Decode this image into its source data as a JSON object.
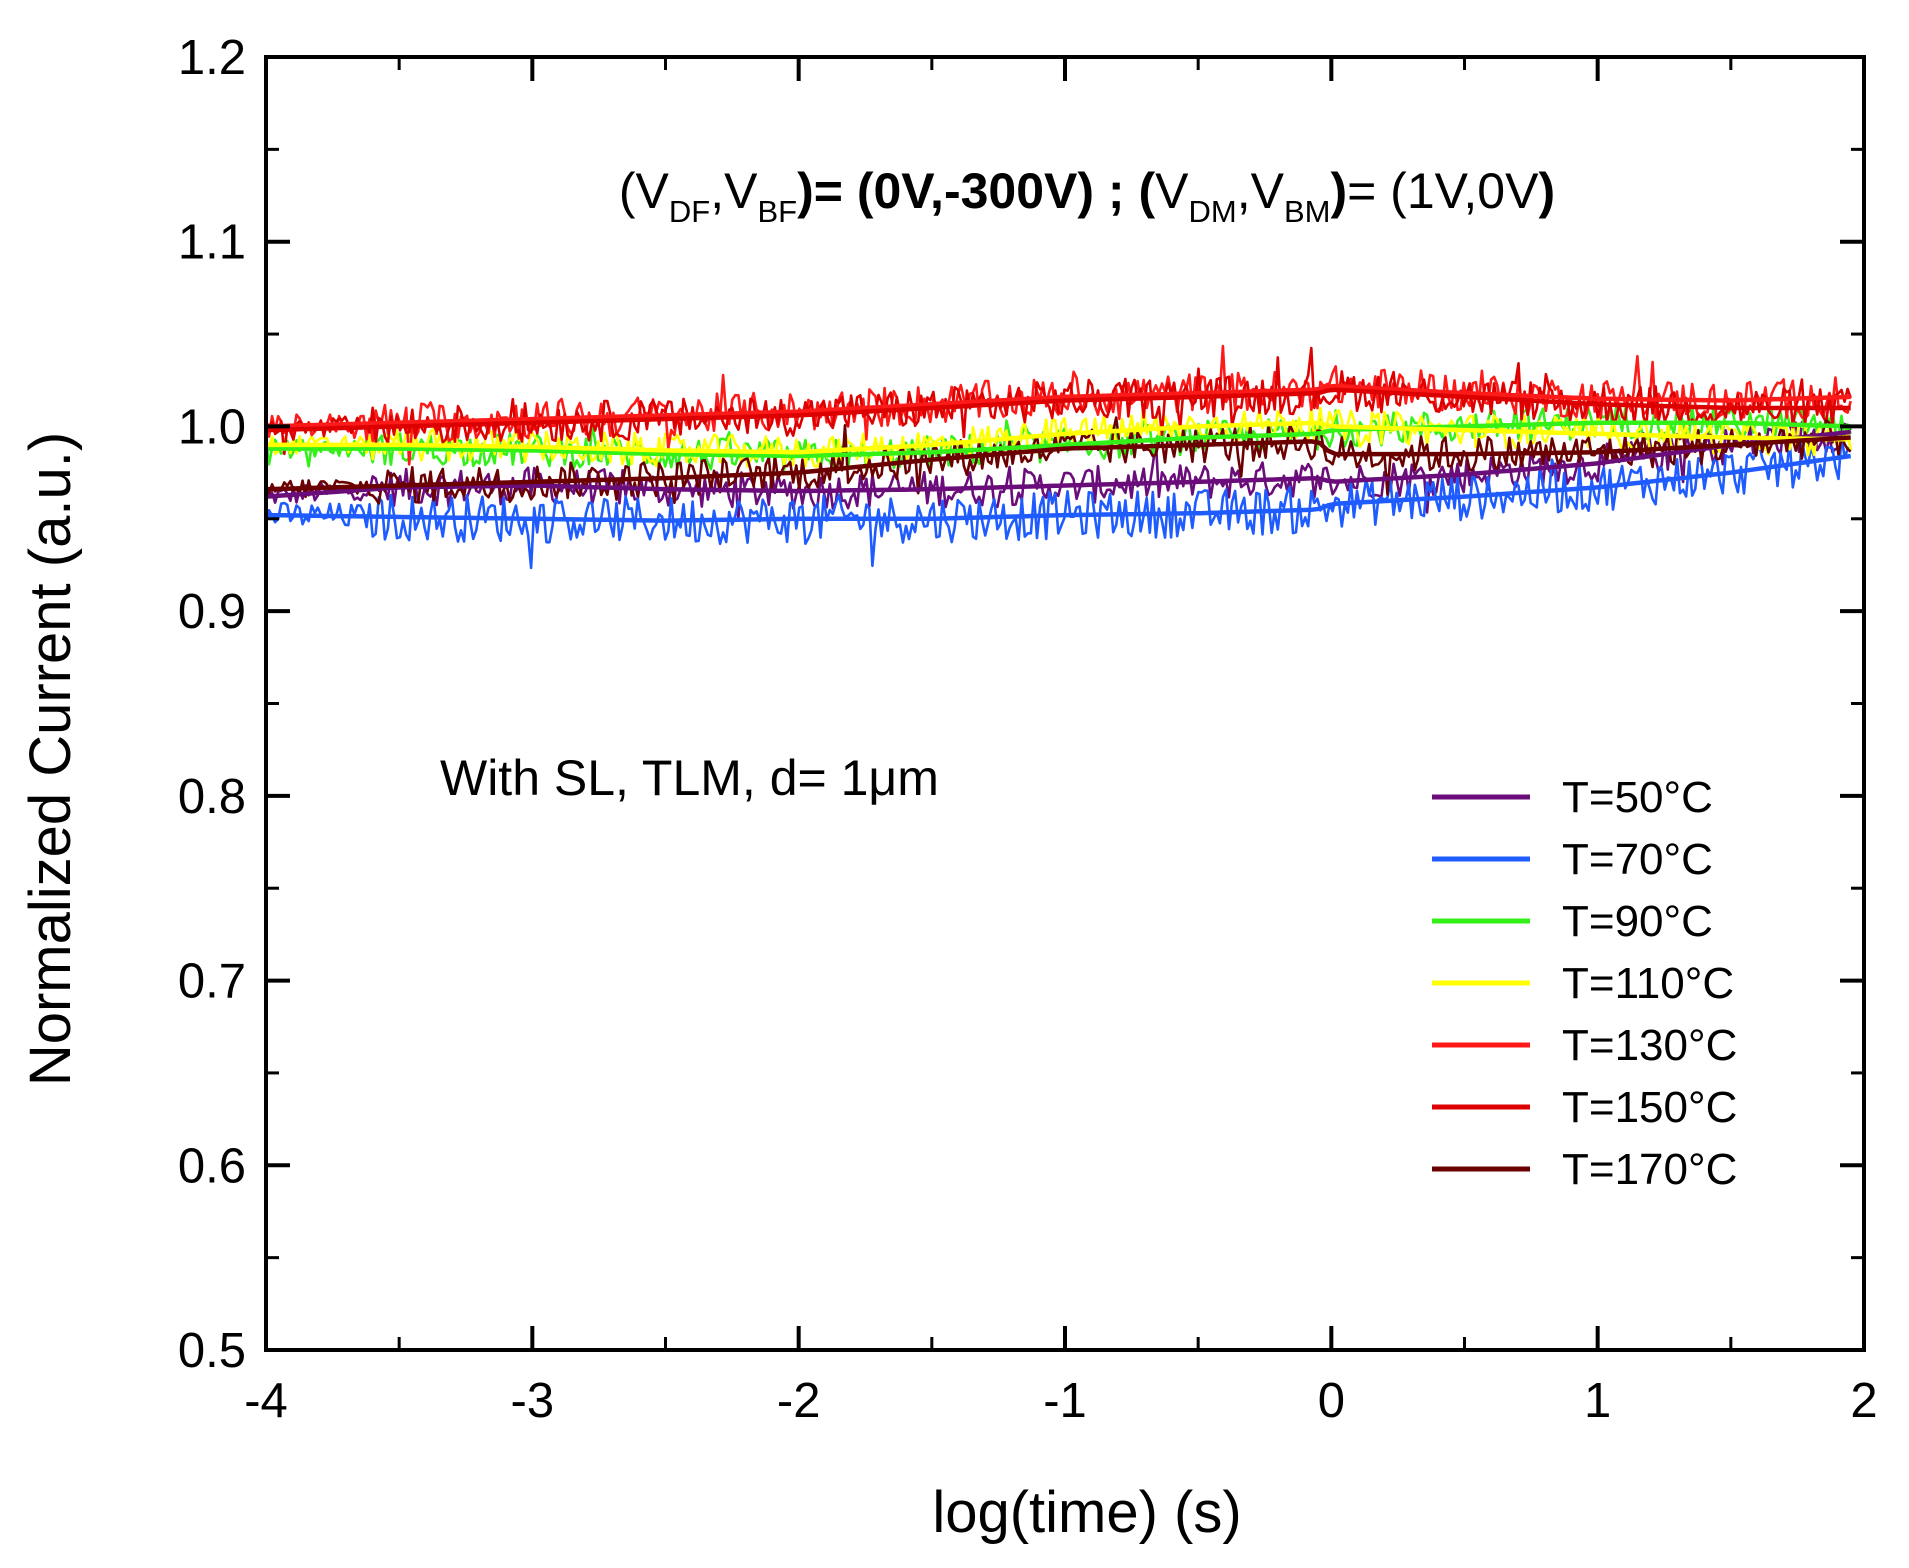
{
  "chart_data": {
    "type": "line",
    "title": "",
    "xlabel": "log(time) (s)",
    "ylabel": "Normalized Current (a.u.)",
    "xlim": [
      -4,
      2
    ],
    "ylim": [
      0.5,
      1.2
    ],
    "x_major_ticks": [
      -4,
      -3,
      -2,
      -1,
      0,
      1,
      2
    ],
    "x_tick_labels": [
      "-4",
      "-3",
      "-2",
      "-1",
      "0",
      "1",
      "2"
    ],
    "y_major_ticks": [
      0.5,
      0.6,
      0.7,
      0.8,
      0.9,
      1.0,
      1.1,
      1.2
    ],
    "y_tick_labels": [
      "0.5",
      "0.6",
      "0.7",
      "0.8",
      "0.9",
      "1.0",
      "1.1",
      "1.2"
    ],
    "grid": false,
    "legend_position": "lower-right",
    "annotations": {
      "bias_condition": {
        "p1": "(V",
        "s1": "DF",
        "p2": ",V",
        "s2": "BF",
        "p3": ")= (0V,-300V) ; ",
        "p4": "(",
        "p5": "V",
        "s3": "DM",
        "p6": ",V",
        "s4": "BM",
        "p7": ")",
        "p8": "= (1V,0V",
        "p9": ")"
      },
      "sample": "With SL, TLM, d= 1μm"
    },
    "x_sample": [
      -4.0,
      -3.5,
      -3.0,
      -2.5,
      -2.0,
      -1.5,
      -1.0,
      -0.5,
      -0.05,
      0.0,
      0.5,
      1.0,
      1.5,
      1.95
    ],
    "series": [
      {
        "name": "T=50°C",
        "color": "#6a0d7a",
        "noise": 0.01,
        "values": [
          0.962,
          0.967,
          0.968,
          0.966,
          0.965,
          0.966,
          0.968,
          0.97,
          0.972,
          0.97,
          0.974,
          0.98,
          0.99,
          0.997
        ]
      },
      {
        "name": "T=70°C",
        "color": "#1e5cff",
        "noise": 0.013,
        "values": [
          0.952,
          0.951,
          0.95,
          0.949,
          0.95,
          0.95,
          0.952,
          0.953,
          0.955,
          0.958,
          0.962,
          0.967,
          0.975,
          0.984
        ]
      },
      {
        "name": "T=90°C",
        "color": "#33f018",
        "noise": 0.009,
        "values": [
          0.988,
          0.988,
          0.987,
          0.985,
          0.984,
          0.986,
          0.99,
          0.994,
          0.996,
          0.998,
          1.0,
          1.002,
          1.002,
          1.0
        ]
      },
      {
        "name": "T=110°C",
        "color": "#ffff00",
        "noise": 0.009,
        "values": [
          0.99,
          0.99,
          0.989,
          0.987,
          0.986,
          0.99,
          0.996,
          1.0,
          1.002,
          1.0,
          0.998,
          0.996,
          0.994,
          0.993
        ]
      },
      {
        "name": "T=130°C",
        "color": "#ff1a1a",
        "noise": 0.011,
        "values": [
          1.0,
          1.002,
          1.004,
          1.006,
          1.008,
          1.012,
          1.016,
          1.018,
          1.02,
          1.022,
          1.018,
          1.015,
          1.014,
          1.016
        ]
      },
      {
        "name": "T=150°C",
        "color": "#dd0000",
        "noise": 0.011,
        "values": [
          0.998,
          1.0,
          1.002,
          1.004,
          1.006,
          1.01,
          1.014,
          1.016,
          1.018,
          1.02,
          1.016,
          1.012,
          1.01,
          1.01
        ]
      },
      {
        "name": "T=170°C",
        "color": "#6b0000",
        "noise": 0.01,
        "values": [
          0.966,
          0.968,
          0.97,
          0.972,
          0.975,
          0.982,
          0.988,
          0.99,
          0.992,
          0.985,
          0.985,
          0.986,
          0.99,
          0.994
        ]
      }
    ]
  }
}
